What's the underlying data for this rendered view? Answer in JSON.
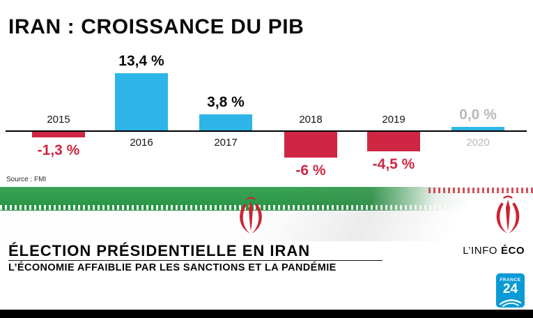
{
  "chart_data": {
    "type": "bar",
    "title": "IRAN : CROISSANCE DU PIB",
    "source": "Source : FMI",
    "categories": [
      "2015",
      "2016",
      "2017",
      "2018",
      "2019",
      "2020"
    ],
    "values": [
      -1.3,
      13.4,
      3.8,
      -6,
      -4.5,
      0
    ],
    "value_labels": [
      "-1,3 %",
      "13,4 %",
      "3,8 %",
      "-6 %",
      "-4,5 %",
      "0,0 %"
    ],
    "unit": "%",
    "ylim": [
      -8,
      15
    ],
    "xlabel": "",
    "ylabel": "",
    "grid": false,
    "legend": "none",
    "colors": {
      "positive": "#2eb5e8",
      "negative": "#cf2743",
      "muted": "#b9b9b9",
      "axis": "#000000"
    }
  },
  "flag": {
    "description": "Drapeau de l'Iran",
    "green": "#2f9c4b",
    "red": "#cc2433"
  },
  "banner": {
    "headline": "ÉLECTION PRÉSIDENTIELLE EN IRAN",
    "subheadline": "L’ÉCONOMIE AFFAIBLIE PAR LES SANCTIONS ET LA PANDÉMIE",
    "program": {
      "prefix": "L’INFO",
      "bold": "ÉCO"
    }
  },
  "logo": {
    "line1": "FRANCE",
    "line2": "24"
  }
}
